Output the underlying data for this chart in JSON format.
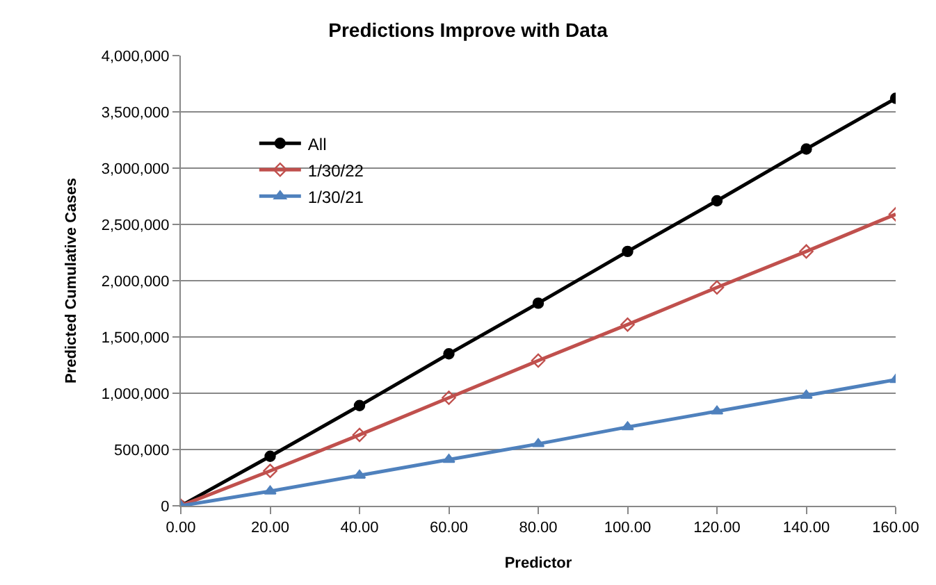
{
  "chart_data": {
    "type": "line",
    "title": "Predictions Improve with Data",
    "xlabel": "Predictor",
    "ylabel": "Predicted Cumulative Cases",
    "x": [
      0,
      20,
      40,
      60,
      80,
      100,
      120,
      140,
      160
    ],
    "series": [
      {
        "name": "All",
        "color": "#000000",
        "marker": "circle",
        "values": [
          0,
          440000,
          890000,
          1350000,
          1800000,
          2260000,
          2710000,
          3170000,
          3620000
        ]
      },
      {
        "name": "1/30/22",
        "color": "#c0504d",
        "marker": "diamond-open",
        "values": [
          0,
          310000,
          630000,
          960000,
          1290000,
          1610000,
          1940000,
          2260000,
          2590000
        ]
      },
      {
        "name": "1/30/21",
        "color": "#4f81bd",
        "marker": "triangle",
        "values": [
          0,
          130000,
          270000,
          410000,
          550000,
          700000,
          840000,
          980000,
          1120000
        ]
      }
    ],
    "xlim": [
      0,
      160
    ],
    "xticks": [
      {
        "value": 0,
        "label": "0.00"
      },
      {
        "value": 20,
        "label": "20.00"
      },
      {
        "value": 40,
        "label": "40.00"
      },
      {
        "value": 60,
        "label": "60.00"
      },
      {
        "value": 80,
        "label": "80.00"
      },
      {
        "value": 100,
        "label": "100.00"
      },
      {
        "value": 120,
        "label": "120.00"
      },
      {
        "value": 140,
        "label": "140.00"
      },
      {
        "value": 160,
        "label": "160.00"
      }
    ],
    "ylim": [
      0,
      4000000
    ],
    "yticks": [
      {
        "value": 0,
        "label": "0"
      },
      {
        "value": 500000,
        "label": "500,000"
      },
      {
        "value": 1000000,
        "label": "1,000,000"
      },
      {
        "value": 1500000,
        "label": "1,500,000"
      },
      {
        "value": 2000000,
        "label": "2,000,000"
      },
      {
        "value": 2500000,
        "label": "2,500,000"
      },
      {
        "value": 3000000,
        "label": "3,000,000"
      },
      {
        "value": 3500000,
        "label": "3,500,000"
      },
      {
        "value": 4000000,
        "label": "4,000,000"
      }
    ],
    "grid": "y",
    "legend": "top left",
    "line_style": "solid"
  }
}
